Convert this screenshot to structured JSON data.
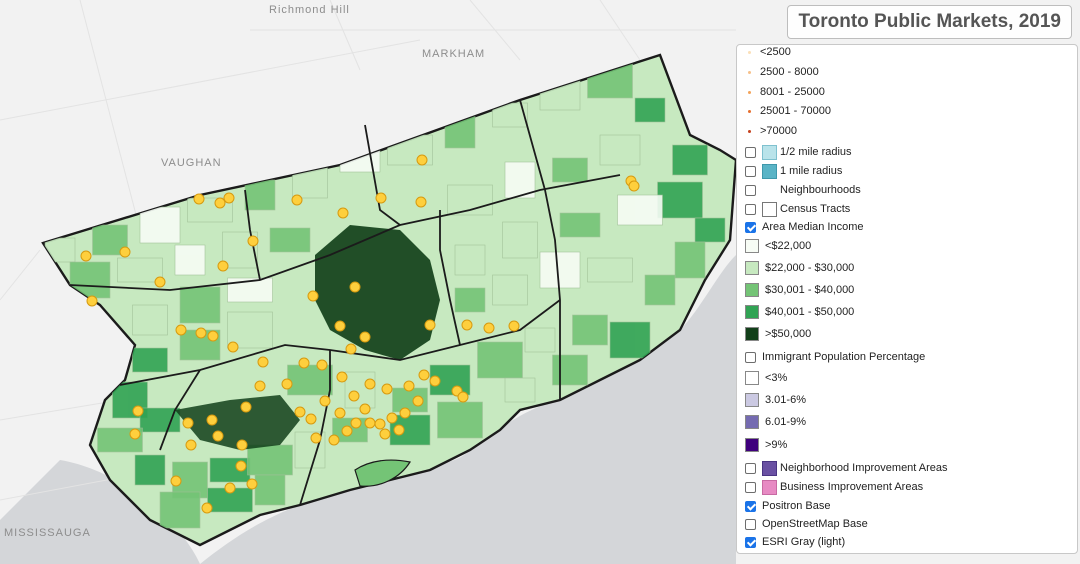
{
  "map": {
    "title": "Toronto Public Markets, 2019",
    "place_labels": [
      "Richmond Hill",
      "MARKHAM",
      "VAUGHAN",
      "MISSISSAUGA"
    ],
    "colors": {
      "land": "#f2f2f2",
      "water": "#d4d6d9",
      "income": [
        "#f7fcf5",
        "#c7e9c0",
        "#74c476",
        "#31a354",
        "#12401a"
      ],
      "market_fill": "#fecf3d",
      "market_stroke": "#d69a10",
      "boundary": "#1b1b1b"
    }
  },
  "legend": {
    "markets": [
      {
        "label": "<2500",
        "color": "#fbe0b8"
      },
      {
        "label": "2500 - 8000",
        "color": "#f6c08a"
      },
      {
        "label": "8001 - 25000",
        "color": "#f3a35a"
      },
      {
        "label": "25001 - 70000",
        "color": "#e66f2f"
      },
      {
        "label": ">70000",
        "color": "#c5421e"
      }
    ],
    "layers": [
      {
        "label": "1/2 mile radius",
        "checked": false,
        "swatch": "#b9e3ea",
        "swatch_border": "#7fc1cf"
      },
      {
        "label": "1 mile radius",
        "checked": false,
        "swatch": "#5ab4c6",
        "swatch_border": "#3f98ab"
      },
      {
        "label": "Neighbourhoods",
        "checked": false,
        "swatch": "#ffffff",
        "swatch_border": "#ffffff"
      },
      {
        "label": "Census Tracts",
        "checked": false,
        "swatch": "#ffffff",
        "swatch_border": "#777777"
      }
    ],
    "income": {
      "label": "Area Median Income",
      "checked": true,
      "classes": [
        {
          "label": "<$22,000",
          "color": "#f7fcf5"
        },
        {
          "label": "$22,000 - $30,000",
          "color": "#c7e9c0"
        },
        {
          "label": "$30,001 - $40,000",
          "color": "#74c476"
        },
        {
          "label": "$40,001 - $50,000",
          "color": "#31a354"
        },
        {
          "label": ">$50,000",
          "color": "#12401a"
        }
      ]
    },
    "immigrant": {
      "label": "Immigrant Population Percentage",
      "checked": false,
      "classes": [
        {
          "label": "<3%",
          "color": "#ffffff"
        },
        {
          "label": "3.01-6%",
          "color": "#cbc9e2"
        },
        {
          "label": "6.01-9%",
          "color": "#756bb1"
        },
        {
          "label": ">9%",
          "color": "#3f007d"
        }
      ]
    },
    "areas": [
      {
        "label": "Neighborhood Improvement Areas",
        "checked": false,
        "swatch": "#6a51a3"
      },
      {
        "label": "Business Improvement Areas",
        "checked": false,
        "swatch": "#e78ac3"
      }
    ],
    "basemaps": [
      {
        "label": "Positron Base",
        "checked": true
      },
      {
        "label": "OpenStreetMap Base",
        "checked": false
      },
      {
        "label": "ESRI Gray (light)",
        "checked": true
      }
    ]
  }
}
